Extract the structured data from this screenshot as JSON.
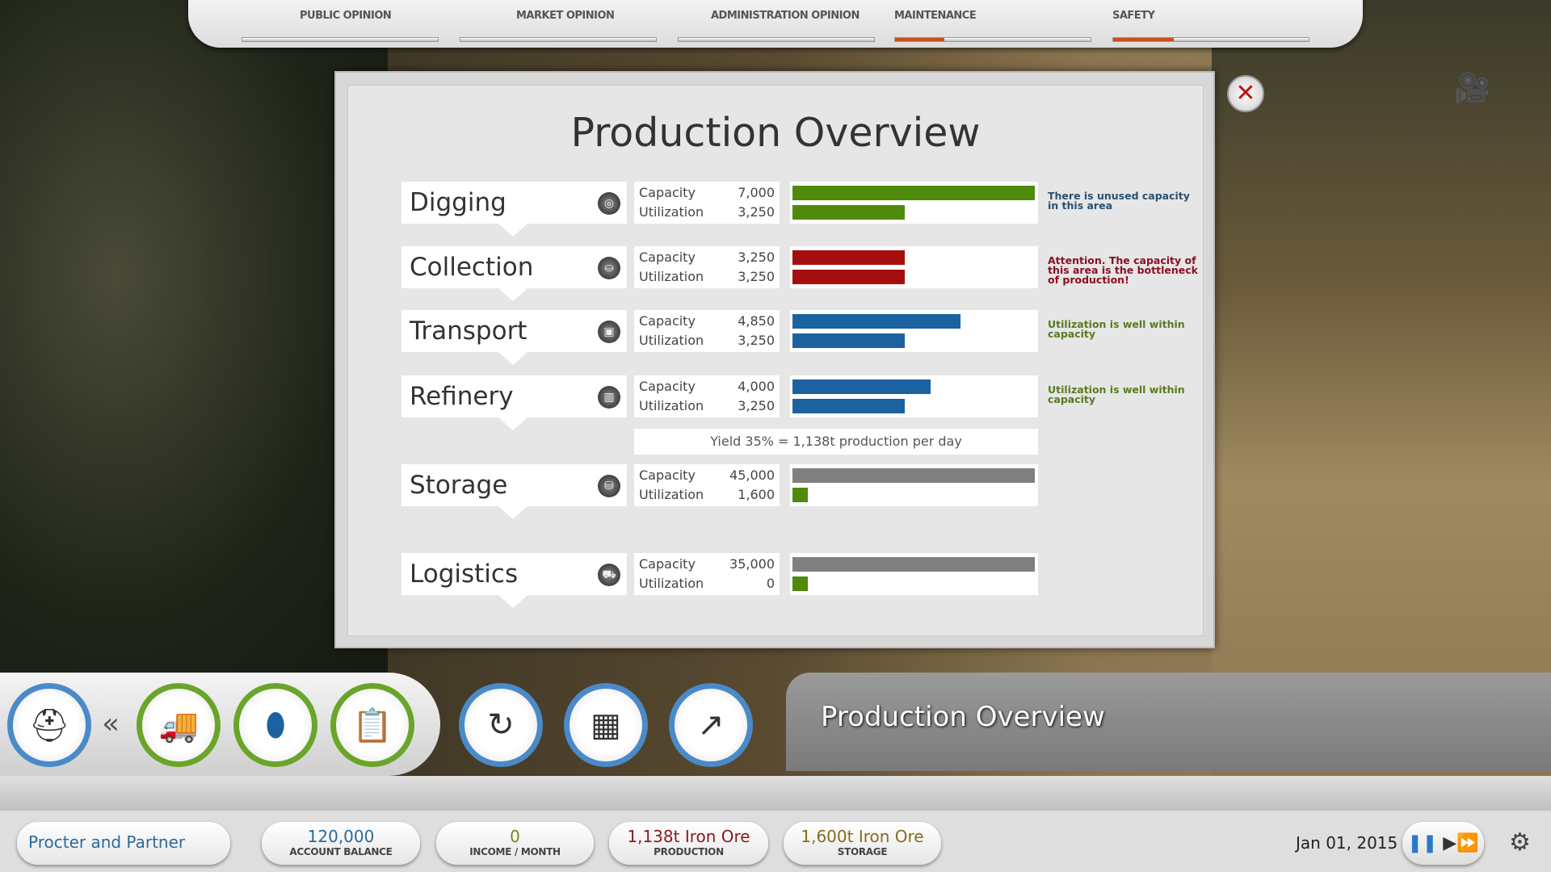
{
  "top_bar": {
    "items": [
      {
        "label": "PUBLIC OPINION",
        "level": 0
      },
      {
        "label": "MARKET OPINION",
        "level": 0
      },
      {
        "label": "ADMINISTRATION OPINION",
        "level": 0
      },
      {
        "label": "MAINTENANCE",
        "level": 0.25
      },
      {
        "label": "SAFETY",
        "level": 0.31
      }
    ]
  },
  "dialog": {
    "title": "Production Overview",
    "close_icon": "close-icon",
    "capacity_label": "Capacity",
    "utilization_label": "Utilization",
    "rows": [
      {
        "name": "Digging",
        "icon": "digging-icon",
        "capacity": "7,000",
        "utilization": "3,250",
        "cap": 7000,
        "util": 3250,
        "color": "#4f8a0a",
        "note": "There is unused capacity in this area",
        "note_color": "#2a5070"
      },
      {
        "name": "Collection",
        "icon": "collection-icon",
        "capacity": "3,250",
        "utilization": "3,250",
        "cap": 3250,
        "util": 3250,
        "color": "#a50e0e",
        "note": "Attention. The capacity of this area is the bottleneck of production!",
        "note_color": "#8a1020"
      },
      {
        "name": "Transport",
        "icon": "transport-icon",
        "capacity": "4,850",
        "utilization": "3,250",
        "cap": 4850,
        "util": 3250,
        "color": "#1a62a0",
        "note": "Utilization is well within capacity",
        "note_color": "#5a7a20"
      },
      {
        "name": "Refinery",
        "icon": "refinery-icon",
        "capacity": "4,000",
        "utilization": "3,250",
        "cap": 4000,
        "util": 3250,
        "color": "#1a62a0",
        "note": "Utilization is well within capacity",
        "note_color": "#5a7a20"
      },
      {
        "name": "Storage",
        "icon": "storage-icon",
        "capacity": "45,000",
        "utilization": "1,600",
        "cap": 45000,
        "util": 1600,
        "color": "#808080",
        "util_color": "#4f8a0a",
        "note": ""
      },
      {
        "name": "Logistics",
        "icon": "logistics-icon",
        "capacity": "35,000",
        "utilization": "0",
        "cap": 35000,
        "util": 0,
        "color": "#808080",
        "util_color": "#4f8a0a",
        "note": ""
      }
    ],
    "yield": "Yield 35% = 1,138t production per day"
  },
  "toolbar": {
    "collapse": "«",
    "panel_title": "Production Overview"
  },
  "status": {
    "company": "Procter and Partner",
    "stats": [
      {
        "value": "120,000",
        "label": "ACCOUNT BALANCE",
        "color": "#2a6a9a"
      },
      {
        "value": "0",
        "label": "INCOME / MONTH",
        "color": "#6a8a1a"
      },
      {
        "value": "1,138t Iron Ore",
        "label": "PRODUCTION",
        "color": "#8a1a1a"
      },
      {
        "value": "1,600t Iron Ore",
        "label": "STORAGE",
        "color": "#8a6a1a"
      }
    ],
    "date": "Jan 01, 2015"
  }
}
